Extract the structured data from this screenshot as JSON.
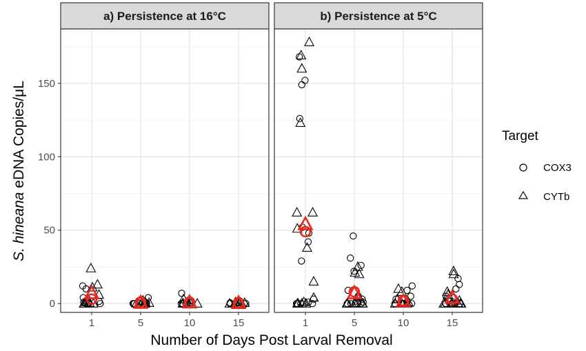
{
  "chart_data": {
    "type": "scatter",
    "panels": [
      {
        "title": "a) Persistence at 16°C"
      },
      {
        "title": "b) Persistence at 5°C"
      }
    ],
    "x_categories": [
      "1",
      "5",
      "10",
      "15"
    ],
    "xlabel": "Number of Days Post Larval Removal",
    "ylabel_species": "S. hineana",
    "ylabel_rest": " eDNA Copies/μL",
    "ylim": [
      -6,
      187
    ],
    "yticks": [
      0,
      50,
      100,
      150
    ],
    "grid": true,
    "legend": {
      "title": "Target",
      "position": "right",
      "entries": [
        {
          "label": "COX3",
          "shape": "circle"
        },
        {
          "label": "CYTb",
          "shape": "triangle"
        }
      ]
    },
    "colors": {
      "points": "#000000",
      "mean": "#e8281d",
      "strip_bg": "#d9d9d9",
      "grid": "#e3e3e3"
    },
    "series": [
      {
        "name": "COX3",
        "shape": "circle",
        "data": [
          [
            [
              12,
              10,
              4,
              3,
              2,
              1,
              0,
              0.5,
              0,
              1.5
            ],
            [
              4,
              1,
              0,
              0,
              0.5,
              0,
              0,
              0
            ],
            [
              7,
              2,
              0,
              0,
              0.5,
              0,
              0
            ],
            [
              2,
              1,
              0,
              0,
              0.5,
              0,
              0
            ]
          ],
          [
            [
              168,
              152,
              149,
              126,
              52,
              48,
              42,
              29,
              3,
              1,
              0,
              0,
              0,
              0
            ],
            [
              46,
              31,
              26,
              22,
              9,
              5,
              3,
              1,
              0,
              0,
              0,
              0,
              0,
              0
            ],
            [
              12,
              9,
              5,
              3,
              1,
              0,
              0,
              0,
              0,
              0
            ],
            [
              17,
              13,
              10,
              5,
              3,
              1,
              0,
              0,
              0,
              0,
              0,
              0
            ]
          ]
        ]
      },
      {
        "name": "CYTb",
        "shape": "triangle",
        "data": [
          [
            [
              24,
              13,
              11,
              6,
              2,
              1,
              0,
              0.5,
              0,
              0
            ],
            [
              2,
              1,
              0,
              0,
              0.5,
              0,
              0,
              0
            ],
            [
              3,
              1,
              0,
              0,
              0.5,
              0,
              0
            ],
            [
              1,
              0,
              0,
              0.5,
              0,
              0
            ]
          ],
          [
            [
              178,
              169,
              160,
              123,
              62,
              62,
              51,
              38,
              15,
              4,
              1,
              0,
              0,
              0,
              0
            ],
            [
              25,
              21,
              20,
              5,
              2,
              0,
              0,
              0,
              0,
              0,
              0
            ],
            [
              10,
              8,
              3,
              1,
              0,
              0,
              0,
              0
            ],
            [
              22,
              20,
              8,
              6,
              2,
              0,
              0,
              0,
              0,
              0,
              0,
              0
            ]
          ]
        ]
      }
    ],
    "means": [
      {
        "name": "COX3",
        "shape": "circle",
        "data": [
          [
            3,
            1,
            1,
            0.5
          ],
          [
            49,
            8,
            2,
            3
          ]
        ]
      },
      {
        "name": "CYTb",
        "shape": "triangle",
        "data": [
          [
            7,
            0.5,
            0.8,
            0.3
          ],
          [
            54,
            7,
            1.5,
            4
          ]
        ]
      }
    ]
  }
}
